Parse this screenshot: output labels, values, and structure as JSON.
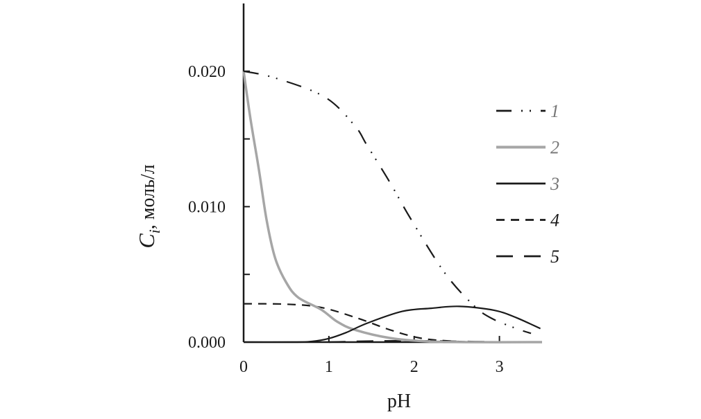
{
  "chart_data": {
    "type": "line",
    "title": "",
    "xlabel": "pH",
    "ylabel_symbol": "C",
    "ylabel_subscript": "i",
    "ylabel_unit": ", моль/л",
    "xlim": [
      0,
      3.5
    ],
    "ylim": [
      0,
      0.025
    ],
    "x_ticks": [
      0,
      1,
      2,
      3
    ],
    "x_tick_labels": [
      "0",
      "1",
      "2",
      "3"
    ],
    "y_major_ticks": [
      0,
      0.01,
      0.02
    ],
    "y_tick_labels": [
      "0.000",
      "0.010",
      "0.020"
    ],
    "y_minor_ticks": [
      0.005,
      0.015
    ],
    "grid": false,
    "legend_placement": "right",
    "series": [
      {
        "name": "1",
        "style": "dash-dot-dot",
        "color": "#1a1a1a",
        "label_color": "#777777",
        "x": [
          0,
          0.37,
          0.95,
          1.3,
          1.45,
          1.71,
          1.96,
          2.36,
          2.7,
          2.91,
          3.2,
          3.37
        ],
        "y": [
          0.02,
          0.0195,
          0.0181,
          0.016,
          0.0145,
          0.01185,
          0.0091,
          0.0051,
          0.0027,
          0.00175,
          0.001,
          0.00065
        ]
      },
      {
        "name": "2",
        "style": "solid",
        "color": "#a6a6a6",
        "label_color": "#777777",
        "x": [
          0,
          0.08,
          0.18,
          0.27,
          0.37,
          0.5,
          0.64,
          0.91,
          1.1,
          1.31,
          1.72,
          2.15,
          2.6,
          3.5
        ],
        "y": [
          0.02,
          0.0165,
          0.0127,
          0.009,
          0.0062,
          0.0044,
          0.0033,
          0.0024,
          0.0015,
          0.0009,
          0.0003,
          5e-05,
          0.0,
          0.0
        ]
      },
      {
        "name": "3",
        "style": "solid",
        "color": "#1a1a1a",
        "label_color": "#777777",
        "x": [
          0,
          0.6,
          0.8,
          0.99,
          1.2,
          1.45,
          1.86,
          2.2,
          2.53,
          2.94,
          3.2,
          3.48
        ],
        "y": [
          0.0,
          0.0,
          5e-05,
          0.00025,
          0.0007,
          0.0014,
          0.00227,
          0.0025,
          0.00264,
          0.00235,
          0.0018,
          0.001
        ]
      },
      {
        "name": "4",
        "style": "dashed",
        "color": "#1a1a1a",
        "label_color": "#1a1a1a",
        "x": [
          0,
          0.5,
          0.91,
          1.34,
          1.72,
          2.07,
          2.43,
          2.8,
          3.5
        ],
        "y": [
          0.00283,
          0.0028,
          0.00256,
          0.00176,
          0.0009,
          0.0003,
          8e-05,
          0.0,
          0.0
        ]
      },
      {
        "name": "5",
        "style": "long-dash",
        "color": "#1a1a1a",
        "label_color": "#1a1a1a",
        "x": [
          1.0,
          1.5,
          2.0,
          2.5,
          3.0,
          3.5
        ],
        "y": [
          0.0,
          8e-05,
          0.0001,
          6e-05,
          2e-05,
          0.0
        ]
      }
    ]
  }
}
